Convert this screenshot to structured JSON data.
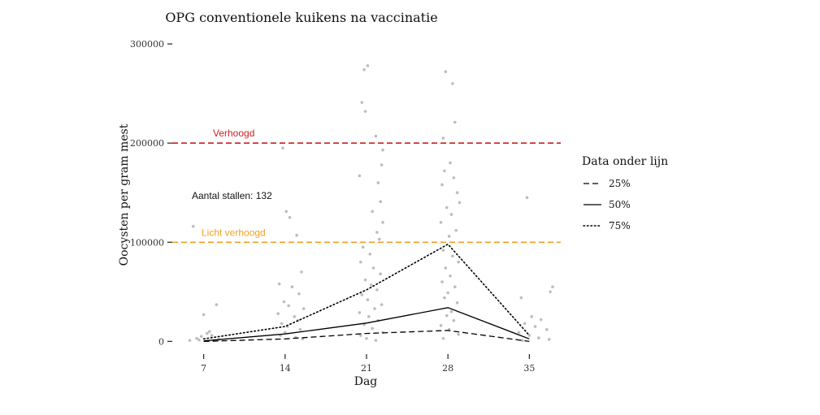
{
  "chart_data": {
    "type": "scatter",
    "title": "OPG conventionele kuikens na vaccinatie",
    "xlabel": "Dag",
    "ylabel": "Oocysten per gram mest",
    "x_ticks": [
      7,
      14,
      21,
      28,
      35
    ],
    "y_ticks": [
      0,
      100000,
      200000,
      300000
    ],
    "y_tick_labels": [
      "0",
      "100000",
      "200000",
      "300000"
    ],
    "xlim": [
      4.3,
      37.7
    ],
    "ylim": [
      -12000,
      305000
    ],
    "grid": false,
    "annotation": "Aantal stallen: 132",
    "threshold_lines": [
      {
        "label": "Verhoogd",
        "value": 200000,
        "color": "#cc1f1f"
      },
      {
        "label": "Licht verhoogd",
        "value": 100000,
        "color": "#f0a020"
      }
    ],
    "legend": {
      "title": "Data onder lijn",
      "position": "right",
      "entries": [
        {
          "name": "25%",
          "style": "dashed"
        },
        {
          "name": "50%",
          "style": "solid"
        },
        {
          "name": "75%",
          "style": "dotted"
        }
      ]
    },
    "series": [
      {
        "name": "25%",
        "style": "dashed",
        "x": [
          7,
          14,
          21,
          28,
          35
        ],
        "y": [
          0,
          2500,
          8000,
          11000,
          0
        ]
      },
      {
        "name": "50%",
        "style": "solid",
        "x": [
          7,
          14,
          21,
          28,
          35
        ],
        "y": [
          500,
          7500,
          18500,
          34000,
          2500
        ]
      },
      {
        "name": "75%",
        "style": "dotted",
        "x": [
          7,
          14,
          21,
          28,
          35
        ],
        "y": [
          2500,
          15000,
          52000,
          98000,
          6000
        ]
      }
    ],
    "points_color": "#bdbdbd",
    "scatter": [
      {
        "x": 6.1,
        "y": 116000
      },
      {
        "x": 7.0,
        "y": 27000
      },
      {
        "x": 8.1,
        "y": 37000
      },
      {
        "x": 6.8,
        "y": 5000
      },
      {
        "x": 7.3,
        "y": 8000
      },
      {
        "x": 6.4,
        "y": 3000
      },
      {
        "x": 7.7,
        "y": 6000
      },
      {
        "x": 8.3,
        "y": 2000
      },
      {
        "x": 5.8,
        "y": 1000
      },
      {
        "x": 7.5,
        "y": 10000
      },
      {
        "x": 6.6,
        "y": 1500
      },
      {
        "x": 13.8,
        "y": 195000
      },
      {
        "x": 14.1,
        "y": 131000
      },
      {
        "x": 14.4,
        "y": 125000
      },
      {
        "x": 15.0,
        "y": 107000
      },
      {
        "x": 15.4,
        "y": 70000
      },
      {
        "x": 13.5,
        "y": 58000
      },
      {
        "x": 14.6,
        "y": 55000
      },
      {
        "x": 15.2,
        "y": 48000
      },
      {
        "x": 13.9,
        "y": 40000
      },
      {
        "x": 14.3,
        "y": 36000
      },
      {
        "x": 15.6,
        "y": 33000
      },
      {
        "x": 13.4,
        "y": 28000
      },
      {
        "x": 14.8,
        "y": 25000
      },
      {
        "x": 15.1,
        "y": 21000
      },
      {
        "x": 13.7,
        "y": 18000
      },
      {
        "x": 14.2,
        "y": 15000
      },
      {
        "x": 15.3,
        "y": 12000
      },
      {
        "x": 14.0,
        "y": 9000
      },
      {
        "x": 13.6,
        "y": 6000
      },
      {
        "x": 14.9,
        "y": 4000
      },
      {
        "x": 15.5,
        "y": 2500
      },
      {
        "x": 20.8,
        "y": 274000
      },
      {
        "x": 21.1,
        "y": 278000
      },
      {
        "x": 20.6,
        "y": 241000
      },
      {
        "x": 20.9,
        "y": 232000
      },
      {
        "x": 21.8,
        "y": 207000
      },
      {
        "x": 22.4,
        "y": 193000
      },
      {
        "x": 22.3,
        "y": 178000
      },
      {
        "x": 20.4,
        "y": 167000
      },
      {
        "x": 22.0,
        "y": 160000
      },
      {
        "x": 22.2,
        "y": 141000
      },
      {
        "x": 21.5,
        "y": 131000
      },
      {
        "x": 22.4,
        "y": 120000
      },
      {
        "x": 21.9,
        "y": 110000
      },
      {
        "x": 22.1,
        "y": 103000
      },
      {
        "x": 20.7,
        "y": 95000
      },
      {
        "x": 21.3,
        "y": 88000
      },
      {
        "x": 20.5,
        "y": 80000
      },
      {
        "x": 21.6,
        "y": 74000
      },
      {
        "x": 22.2,
        "y": 68000
      },
      {
        "x": 20.9,
        "y": 62000
      },
      {
        "x": 21.4,
        "y": 57000
      },
      {
        "x": 21.9,
        "y": 52000
      },
      {
        "x": 20.6,
        "y": 47000
      },
      {
        "x": 21.1,
        "y": 42000
      },
      {
        "x": 22.3,
        "y": 37000
      },
      {
        "x": 21.7,
        "y": 33000
      },
      {
        "x": 20.4,
        "y": 29000
      },
      {
        "x": 21.2,
        "y": 25000
      },
      {
        "x": 22.0,
        "y": 21000
      },
      {
        "x": 20.8,
        "y": 17000
      },
      {
        "x": 21.5,
        "y": 13000
      },
      {
        "x": 22.4,
        "y": 9000
      },
      {
        "x": 20.5,
        "y": 6000
      },
      {
        "x": 21.0,
        "y": 3000
      },
      {
        "x": 21.8,
        "y": 1000
      },
      {
        "x": 27.8,
        "y": 272000
      },
      {
        "x": 28.4,
        "y": 260000
      },
      {
        "x": 28.6,
        "y": 221000
      },
      {
        "x": 27.6,
        "y": 205000
      },
      {
        "x": 28.2,
        "y": 180000
      },
      {
        "x": 27.7,
        "y": 172000
      },
      {
        "x": 28.5,
        "y": 165000
      },
      {
        "x": 27.5,
        "y": 158000
      },
      {
        "x": 28.8,
        "y": 150000
      },
      {
        "x": 29.0,
        "y": 140000
      },
      {
        "x": 27.9,
        "y": 135000
      },
      {
        "x": 28.3,
        "y": 128000
      },
      {
        "x": 27.4,
        "y": 120000
      },
      {
        "x": 28.7,
        "y": 112000
      },
      {
        "x": 28.1,
        "y": 106000
      },
      {
        "x": 27.6,
        "y": 92000
      },
      {
        "x": 28.4,
        "y": 86000
      },
      {
        "x": 28.9,
        "y": 80000
      },
      {
        "x": 27.8,
        "y": 74000
      },
      {
        "x": 28.2,
        "y": 66000
      },
      {
        "x": 27.5,
        "y": 60000
      },
      {
        "x": 28.6,
        "y": 55000
      },
      {
        "x": 28.0,
        "y": 49000
      },
      {
        "x": 27.7,
        "y": 44000
      },
      {
        "x": 28.8,
        "y": 39000
      },
      {
        "x": 28.3,
        "y": 30000
      },
      {
        "x": 27.9,
        "y": 26000
      },
      {
        "x": 28.5,
        "y": 21000
      },
      {
        "x": 27.4,
        "y": 16000
      },
      {
        "x": 28.1,
        "y": 12000
      },
      {
        "x": 28.9,
        "y": 7000
      },
      {
        "x": 27.6,
        "y": 3000
      },
      {
        "x": 34.8,
        "y": 145000
      },
      {
        "x": 37.0,
        "y": 55000
      },
      {
        "x": 36.8,
        "y": 50000
      },
      {
        "x": 34.3,
        "y": 44000
      },
      {
        "x": 35.2,
        "y": 25000
      },
      {
        "x": 36.0,
        "y": 22000
      },
      {
        "x": 34.6,
        "y": 18000
      },
      {
        "x": 35.5,
        "y": 15000
      },
      {
        "x": 36.5,
        "y": 12000
      },
      {
        "x": 34.1,
        "y": 9000
      },
      {
        "x": 35.0,
        "y": 6000
      },
      {
        "x": 35.8,
        "y": 3500
      },
      {
        "x": 36.7,
        "y": 2000
      },
      {
        "x": 34.4,
        "y": 1000
      }
    ]
  }
}
